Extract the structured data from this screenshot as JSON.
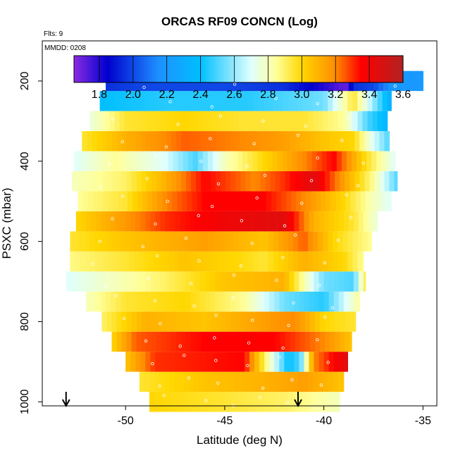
{
  "chart_data": {
    "type": "heatmap",
    "title": "ORCAS RF09 CONCN (Log)",
    "flights_label": "Flts: 9",
    "date_label": "MMDD: 0208",
    "xlabel": "Latitude (deg N)",
    "ylabel": "PSXC (mbar)",
    "xlim": [
      -54.2,
      -34.3
    ],
    "ylim": [
      1010,
      100
    ],
    "xticks": [
      -50,
      -45,
      -40,
      -35
    ],
    "xtick_labels": [
      "-50",
      "-45",
      "-40",
      "-35"
    ],
    "yticks": [
      200,
      400,
      600,
      800,
      1000
    ],
    "ytick_labels": [
      "200",
      "400",
      "600",
      "800",
      "1000"
    ],
    "colorbar": {
      "range": [
        1.65,
        3.6
      ],
      "ticks": [
        1.8,
        2.0,
        2.2,
        2.4,
        2.6,
        2.8,
        3.0,
        3.2,
        3.4,
        3.6
      ],
      "tick_labels": [
        "1.8",
        "2.0",
        "2.2",
        "2.4",
        "2.6",
        "2.8",
        "3.0",
        "3.2",
        "3.4",
        "3.6"
      ],
      "colors": [
        "#8a2be2",
        "#0000cd",
        "#1e90ff",
        "#00bfff",
        "#e0ffff",
        "#ffff99",
        "#ffd700",
        "#ff8c00",
        "#ff0000",
        "#b22222"
      ],
      "stops": [
        1.65,
        1.85,
        2.15,
        2.4,
        2.7,
        2.85,
        3.0,
        3.2,
        3.35,
        3.6
      ]
    },
    "arrows_latitude": [
      -53.0,
      -41.3
    ],
    "layer_height_mbar": 50,
    "layers": [
      {
        "p": 1000,
        "lat": [
          -48.8,
          -39.2
        ],
        "anchors": [
          [
            -48.8,
            3.0
          ],
          [
            -45,
            2.95
          ],
          [
            -42,
            2.9
          ],
          [
            -39.2,
            2.8
          ]
        ]
      },
      {
        "p": 950,
        "lat": [
          -49.3,
          -39.0
        ],
        "anchors": [
          [
            -49.3,
            2.95
          ],
          [
            -46,
            3.05
          ],
          [
            -43,
            3.1
          ],
          [
            -41,
            3.15
          ],
          [
            -39.0,
            3.05
          ]
        ]
      },
      {
        "p": 900,
        "lat": [
          -50.0,
          -38.8
        ],
        "anchors": [
          [
            -50.0,
            3.05
          ],
          [
            -48.5,
            3.3
          ],
          [
            -44,
            3.35
          ],
          [
            -43.2,
            3.0
          ],
          [
            -42.5,
            2.7
          ],
          [
            -41.8,
            2.4
          ],
          [
            -41.2,
            2.5
          ],
          [
            -40.5,
            3.2
          ],
          [
            -39.2,
            3.4
          ],
          [
            -38.8,
            3.45
          ]
        ]
      },
      {
        "p": 850,
        "lat": [
          -50.7,
          -38.6
        ],
        "anchors": [
          [
            -50.7,
            3.0
          ],
          [
            -49.5,
            3.25
          ],
          [
            -46,
            3.35
          ],
          [
            -42.5,
            3.35
          ],
          [
            -40,
            3.2
          ],
          [
            -38.6,
            3.05
          ]
        ]
      },
      {
        "p": 800,
        "lat": [
          -51.2,
          -38.4
        ],
        "anchors": [
          [
            -51.2,
            2.9
          ],
          [
            -49,
            3.1
          ],
          [
            -46,
            3.05
          ],
          [
            -43,
            3.15
          ],
          [
            -41.5,
            3.2
          ],
          [
            -40,
            3.0
          ],
          [
            -38.4,
            2.95
          ]
        ]
      },
      {
        "p": 750,
        "lat": [
          -52.0,
          -38.2
        ],
        "anchors": [
          [
            -52.0,
            2.8
          ],
          [
            -50,
            2.95
          ],
          [
            -47,
            3.0
          ],
          [
            -44,
            2.85
          ],
          [
            -42,
            2.55
          ],
          [
            -40,
            2.45
          ],
          [
            -38.2,
            2.85
          ]
        ]
      },
      {
        "p": 700,
        "lat": [
          -53.0,
          -37.9
        ],
        "anchors": [
          [
            -53.0,
            2.7
          ],
          [
            -51,
            2.78
          ],
          [
            -48,
            2.9
          ],
          [
            -45,
            3.05
          ],
          [
            -42,
            3.1
          ],
          [
            -40,
            2.55
          ],
          [
            -38.5,
            2.5
          ],
          [
            -37.9,
            2.95
          ]
        ]
      },
      {
        "p": 650,
        "lat": [
          -52.8,
          -38.0
        ],
        "anchors": [
          [
            -52.8,
            2.87
          ],
          [
            -50,
            2.95
          ],
          [
            -47,
            3.05
          ],
          [
            -44.5,
            3.0
          ],
          [
            -43,
            2.95
          ],
          [
            -41,
            3.1
          ],
          [
            -39,
            3.0
          ],
          [
            -38.0,
            2.85
          ]
        ]
      },
      {
        "p": 600,
        "lat": [
          -52.8,
          -37.6
        ],
        "anchors": [
          [
            -52.8,
            2.95
          ],
          [
            -50,
            3.05
          ],
          [
            -46,
            3.15
          ],
          [
            -43,
            3.05
          ],
          [
            -41,
            3.25
          ],
          [
            -39.5,
            3.0
          ],
          [
            -37.6,
            2.85
          ]
        ]
      },
      {
        "p": 550,
        "lat": [
          -52.5,
          -37.3
        ],
        "anchors": [
          [
            -52.5,
            3.0
          ],
          [
            -51,
            3.1
          ],
          [
            -48,
            3.3
          ],
          [
            -45,
            3.4
          ],
          [
            -42,
            3.45
          ],
          [
            -40.5,
            3.1
          ],
          [
            -38.5,
            2.95
          ],
          [
            -37.3,
            2.75
          ]
        ]
      },
      {
        "p": 500,
        "lat": [
          -52.4,
          -36.6
        ],
        "anchors": [
          [
            -52.4,
            2.85
          ],
          [
            -50,
            2.95
          ],
          [
            -48,
            3.2
          ],
          [
            -46,
            3.35
          ],
          [
            -43,
            3.35
          ],
          [
            -41,
            3.2
          ],
          [
            -39,
            3.0
          ],
          [
            -37.5,
            2.8
          ],
          [
            -36.6,
            2.7
          ]
        ]
      },
      {
        "p": 450,
        "lat": [
          -52.7,
          -36.3
        ],
        "anchors": [
          [
            -52.7,
            2.8
          ],
          [
            -50,
            2.9
          ],
          [
            -48,
            3.1
          ],
          [
            -46,
            3.35
          ],
          [
            -43.5,
            3.2
          ],
          [
            -42,
            3.3
          ],
          [
            -40.5,
            3.45
          ],
          [
            -39,
            3.15
          ],
          [
            -37.5,
            2.85
          ],
          [
            -36.3,
            2.5
          ]
        ]
      },
      {
        "p": 400,
        "lat": [
          -52.6,
          -36.4
        ],
        "anchors": [
          [
            -52.6,
            2.7
          ],
          [
            -50.5,
            2.85
          ],
          [
            -48,
            2.7
          ],
          [
            -46.5,
            2.5
          ],
          [
            -45,
            2.8
          ],
          [
            -43,
            3.0
          ],
          [
            -41,
            3.2
          ],
          [
            -39.5,
            3.35
          ],
          [
            -38,
            3.0
          ],
          [
            -36.4,
            2.7
          ]
        ]
      },
      {
        "p": 350,
        "lat": [
          -52.2,
          -36.7
        ],
        "anchors": [
          [
            -52.2,
            2.95
          ],
          [
            -50,
            3.1
          ],
          [
            -47,
            3.25
          ],
          [
            -44,
            3.2
          ],
          [
            -42,
            3.15
          ],
          [
            -40,
            3.05
          ],
          [
            -38.5,
            3.0
          ],
          [
            -37.5,
            2.7
          ],
          [
            -36.7,
            2.5
          ]
        ]
      },
      {
        "p": 300,
        "lat": [
          -51.8,
          -36.8
        ],
        "anchors": [
          [
            -51.8,
            2.75
          ],
          [
            -50,
            2.95
          ],
          [
            -47,
            3.0
          ],
          [
            -44,
            2.95
          ],
          [
            -41,
            2.95
          ],
          [
            -39,
            2.85
          ],
          [
            -37.8,
            2.5
          ],
          [
            -36.8,
            2.35
          ]
        ]
      },
      {
        "p": 250,
        "lat": [
          -51.3,
          -36.6
        ],
        "anchors": [
          [
            -51.3,
            2.4
          ],
          [
            -48,
            2.45
          ],
          [
            -44,
            2.45
          ],
          [
            -40,
            2.55
          ],
          [
            -38.5,
            2.95
          ],
          [
            -37.5,
            2.6
          ],
          [
            -36.6,
            2.3
          ]
        ]
      },
      {
        "p": 200,
        "lat": [
          -51.0,
          -35.0
        ],
        "anchors": [
          [
            -51.0,
            1.95
          ],
          [
            -49,
            2.0
          ],
          [
            -45,
            2.0
          ],
          [
            -42,
            1.95
          ],
          [
            -40,
            1.8
          ],
          [
            -38.9,
            1.7
          ],
          [
            -38.5,
            1.95
          ],
          [
            -37.5,
            2.0
          ],
          [
            -36.5,
            2.2
          ],
          [
            -35.0,
            2.2
          ]
        ]
      }
    ]
  }
}
